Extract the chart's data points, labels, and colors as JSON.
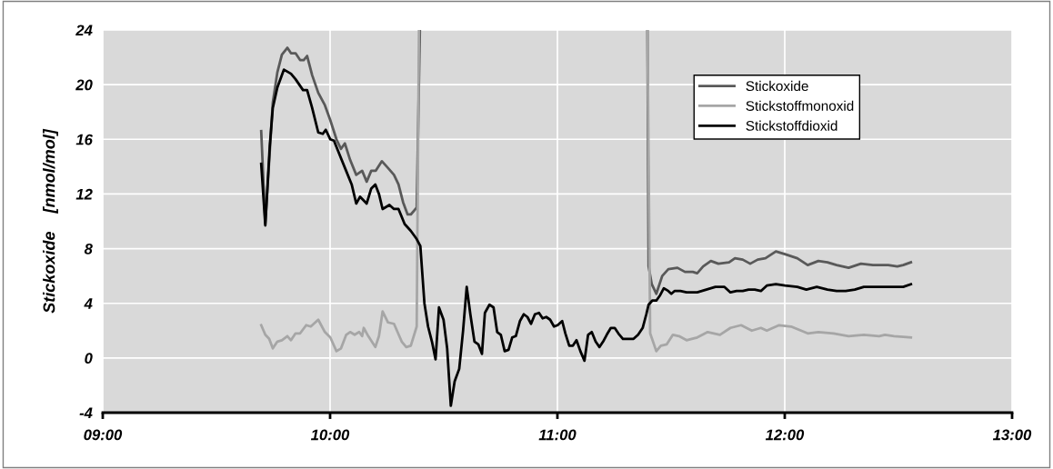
{
  "chart_data": {
    "type": "line",
    "ylabel": "Stickoxide    [nmol/mol]",
    "xlim": [
      9,
      13
    ],
    "ylim": [
      -4,
      24
    ],
    "xticks": [
      {
        "value": 9,
        "label": "09:00"
      },
      {
        "value": 10,
        "label": "10:00"
      },
      {
        "value": 11,
        "label": "11:00"
      },
      {
        "value": 12,
        "label": "12:00"
      },
      {
        "value": 13,
        "label": "13:00"
      }
    ],
    "yticks": [
      -4,
      0,
      4,
      8,
      12,
      16,
      20,
      24
    ],
    "grid": true,
    "legend": "top right",
    "line_style": "solid",
    "marker": "none",
    "series": [
      {
        "name": "Stickoxide",
        "color": "#595959",
        "x": [
          9.697,
          9.715,
          9.748,
          9.768,
          9.788,
          9.812,
          9.828,
          9.848,
          9.868,
          9.884,
          9.899,
          9.921,
          9.948,
          9.977,
          10.001,
          10.028,
          10.048,
          10.065,
          10.088,
          10.115,
          10.141,
          10.161,
          10.181,
          10.201,
          10.228,
          10.255,
          10.281,
          10.301,
          10.321,
          10.341,
          10.355,
          10.381,
          10.395,
          10.9,
          11.396,
          11.401,
          11.415,
          11.435,
          11.461,
          11.488,
          11.528,
          11.561,
          11.595,
          11.615,
          11.641,
          11.675,
          11.708,
          11.755,
          11.781,
          11.815,
          11.848,
          11.881,
          11.915,
          11.961,
          12.001,
          12.055,
          12.101,
          12.148,
          12.188,
          12.228,
          12.281,
          12.335,
          12.388,
          12.455,
          12.495,
          12.521,
          12.555
        ],
        "values": [
          16.6,
          9.8,
          18.7,
          20.9,
          22.2,
          22.7,
          22.3,
          22.3,
          21.8,
          21.8,
          22.1,
          20.7,
          19.4,
          18.5,
          17.4,
          16.0,
          15.3,
          15.7,
          14.5,
          13.4,
          13.7,
          12.9,
          13.7,
          13.7,
          14.4,
          13.9,
          13.4,
          12.7,
          11.4,
          10.5,
          10.5,
          11.0,
          24,
          null,
          24,
          6.7,
          5.4,
          4.7,
          6.0,
          6.5,
          6.6,
          6.3,
          6.3,
          6.2,
          6.7,
          7.1,
          6.9,
          7.0,
          7.3,
          7.2,
          6.9,
          7.2,
          7.3,
          7.8,
          7.6,
          7.3,
          6.8,
          7.1,
          7.0,
          6.8,
          6.6,
          6.9,
          6.8,
          6.8,
          6.7,
          6.8,
          7.0
        ]
      },
      {
        "name": "Stickstoffmonoxid",
        "color": "#a6a6a6",
        "x": [
          9.697,
          9.715,
          9.732,
          9.748,
          9.768,
          9.788,
          9.812,
          9.828,
          9.848,
          9.868,
          9.895,
          9.915,
          9.948,
          9.977,
          10.001,
          10.028,
          10.048,
          10.071,
          10.088,
          10.108,
          10.128,
          10.141,
          10.148,
          10.168,
          10.199,
          10.215,
          10.231,
          10.255,
          10.281,
          10.315,
          10.335,
          10.355,
          10.381,
          10.391,
          10.9,
          11.396,
          11.408,
          11.435,
          11.455,
          11.481,
          11.508,
          11.535,
          11.568,
          11.615,
          11.661,
          11.715,
          11.761,
          11.808,
          11.855,
          11.895,
          11.921,
          11.975,
          12.028,
          12.101,
          12.148,
          12.215,
          12.281,
          12.348,
          12.415,
          12.441,
          12.481,
          12.555
        ],
        "values": [
          2.4,
          1.7,
          1.4,
          0.7,
          1.2,
          1.3,
          1.6,
          1.3,
          1.8,
          1.8,
          2.4,
          2.3,
          2.8,
          1.9,
          1.5,
          0.5,
          0.7,
          1.7,
          1.9,
          1.7,
          1.9,
          1.6,
          2.2,
          1.6,
          0.8,
          1.6,
          3.4,
          2.6,
          2.5,
          1.2,
          0.8,
          0.9,
          2.3,
          24,
          null,
          24,
          1.8,
          0.5,
          0.9,
          1.0,
          1.7,
          1.6,
          1.3,
          1.5,
          1.9,
          1.7,
          2.2,
          2.4,
          2.0,
          2.2,
          2.0,
          2.4,
          2.3,
          1.8,
          1.9,
          1.8,
          1.6,
          1.7,
          1.6,
          1.7,
          1.6,
          1.5
        ]
      },
      {
        "name": "Stickstoffdioxid",
        "color": "#000000",
        "x": [
          9.697,
          9.715,
          9.735,
          9.748,
          9.768,
          9.797,
          9.828,
          9.848,
          9.881,
          9.899,
          9.921,
          9.948,
          9.968,
          9.981,
          10.001,
          10.017,
          10.041,
          10.068,
          10.095,
          10.115,
          10.132,
          10.161,
          10.181,
          10.199,
          10.215,
          10.231,
          10.261,
          10.281,
          10.301,
          10.328,
          10.355,
          10.381,
          10.397,
          10.415,
          10.431,
          10.448,
          10.464,
          10.479,
          10.499,
          10.515,
          10.531,
          10.548,
          10.568,
          10.585,
          10.601,
          10.617,
          10.635,
          10.652,
          10.668,
          10.681,
          10.701,
          10.719,
          10.735,
          10.751,
          10.768,
          10.785,
          10.801,
          10.817,
          10.835,
          10.852,
          10.868,
          10.884,
          10.901,
          10.919,
          10.935,
          10.951,
          10.968,
          10.985,
          11.001,
          11.021,
          11.035,
          11.052,
          11.068,
          11.084,
          11.101,
          11.119,
          11.135,
          11.151,
          11.168,
          11.185,
          11.201,
          11.217,
          11.235,
          11.252,
          11.268,
          11.288,
          11.335,
          11.355,
          11.375,
          11.391,
          11.401,
          11.417,
          11.435,
          11.452,
          11.468,
          11.488,
          11.501,
          11.515,
          11.541,
          11.568,
          11.595,
          11.615,
          11.655,
          11.695,
          11.735,
          11.761,
          11.788,
          11.815,
          11.841,
          11.868,
          11.895,
          11.921,
          11.961,
          12.001,
          12.055,
          12.095,
          12.141,
          12.188,
          12.228,
          12.268,
          12.308,
          12.348,
          12.441,
          12.521,
          12.555
        ],
        "values": [
          14.2,
          9.7,
          15.6,
          18.3,
          19.8,
          21.1,
          20.8,
          20.4,
          19.6,
          19.6,
          18.3,
          16.5,
          16.4,
          16.7,
          16.0,
          15.9,
          14.9,
          13.8,
          12.7,
          11.3,
          11.8,
          11.3,
          12.4,
          12.7,
          12.0,
          10.9,
          11.2,
          10.9,
          10.9,
          9.8,
          9.3,
          8.7,
          8.2,
          4.0,
          2.3,
          1.2,
          -0.1,
          3.7,
          2.8,
          0.7,
          -3.5,
          -1.7,
          -0.8,
          2.0,
          5.2,
          3.2,
          1.2,
          1.0,
          0.3,
          3.3,
          3.9,
          3.7,
          1.9,
          1.7,
          0.5,
          0.6,
          1.5,
          1.6,
          2.7,
          3.2,
          3.0,
          2.5,
          3.2,
          3.3,
          2.9,
          3.0,
          2.8,
          2.3,
          2.4,
          2.7,
          1.8,
          0.9,
          0.9,
          1.3,
          0.5,
          -0.2,
          1.7,
          1.9,
          1.2,
          0.8,
          1.2,
          1.7,
          2.2,
          2.2,
          1.8,
          1.4,
          1.4,
          1.7,
          2.2,
          3.2,
          3.9,
          4.2,
          4.2,
          4.6,
          5.1,
          4.9,
          4.7,
          4.9,
          4.9,
          4.8,
          4.8,
          4.8,
          5.0,
          5.2,
          5.2,
          4.8,
          4.9,
          4.9,
          5.0,
          5.0,
          4.9,
          5.3,
          5.4,
          5.3,
          5.2,
          5.0,
          5.2,
          5.0,
          4.9,
          4.9,
          5.0,
          5.2,
          5.2,
          5.2,
          5.4
        ]
      }
    ]
  }
}
